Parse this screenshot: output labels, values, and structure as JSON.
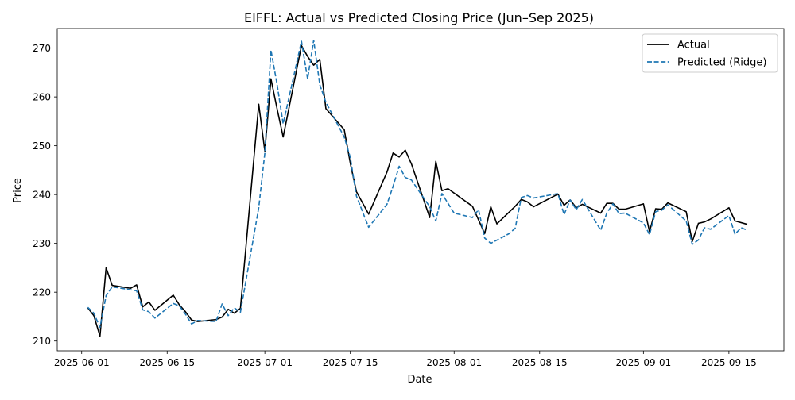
{
  "chart_data": {
    "type": "line",
    "title": "EIFFL: Actual vs Predicted Closing Price (Jun–Sep 2025)",
    "xlabel": "Date",
    "ylabel": "Price",
    "xlim": [
      "2025-05-28",
      "2025-09-24"
    ],
    "ylim": [
      208,
      274
    ],
    "x_ticks": [
      "2025-06-01",
      "2025-06-15",
      "2025-07-01",
      "2025-07-15",
      "2025-08-01",
      "2025-08-15",
      "2025-09-01",
      "2025-09-15"
    ],
    "y_ticks": [
      210,
      220,
      230,
      240,
      250,
      260,
      270
    ],
    "grid": false,
    "legend_position": "top-right",
    "series": [
      {
        "name": "Actual",
        "color": "#000000",
        "style": "solid",
        "points": [
          [
            "2025-06-02",
            216.8
          ],
          [
            "2025-06-03",
            215.2
          ],
          [
            "2025-06-04",
            211.0
          ],
          [
            "2025-06-05",
            225.0
          ],
          [
            "2025-06-06",
            221.4
          ],
          [
            "2025-06-09",
            220.8
          ],
          [
            "2025-06-10",
            221.5
          ],
          [
            "2025-06-11",
            217.0
          ],
          [
            "2025-06-12",
            218.0
          ],
          [
            "2025-06-13",
            216.3
          ],
          [
            "2025-06-16",
            219.4
          ],
          [
            "2025-06-17",
            217.4
          ],
          [
            "2025-06-18",
            216.0
          ],
          [
            "2025-06-19",
            214.3
          ],
          [
            "2025-06-20",
            214.0
          ],
          [
            "2025-06-23",
            214.4
          ],
          [
            "2025-06-24",
            214.9
          ],
          [
            "2025-06-25",
            216.5
          ],
          [
            "2025-06-26",
            215.7
          ],
          [
            "2025-06-27",
            216.7
          ],
          [
            "2025-06-30",
            258.5
          ],
          [
            "2025-07-01",
            248.9
          ],
          [
            "2025-07-02",
            263.7
          ],
          [
            "2025-07-03",
            257.6
          ],
          [
            "2025-07-04",
            251.8
          ],
          [
            "2025-07-07",
            270.5
          ],
          [
            "2025-07-08",
            268.3
          ],
          [
            "2025-07-09",
            266.5
          ],
          [
            "2025-07-10",
            267.7
          ],
          [
            "2025-07-11",
            257.6
          ],
          [
            "2025-07-14",
            253.3
          ],
          [
            "2025-07-15",
            246.4
          ],
          [
            "2025-07-16",
            240.6
          ],
          [
            "2025-07-18",
            236.0
          ],
          [
            "2025-07-21",
            244.6
          ],
          [
            "2025-07-22",
            248.5
          ],
          [
            "2025-07-23",
            247.7
          ],
          [
            "2025-07-24",
            249.1
          ],
          [
            "2025-07-25",
            246.3
          ],
          [
            "2025-07-28",
            235.3
          ],
          [
            "2025-07-29",
            246.8
          ],
          [
            "2025-07-30",
            240.8
          ],
          [
            "2025-07-31",
            241.2
          ],
          [
            "2025-08-04",
            237.6
          ],
          [
            "2025-08-06",
            232.0
          ],
          [
            "2025-08-07",
            237.5
          ],
          [
            "2025-08-08",
            234.0
          ],
          [
            "2025-08-11",
            237.6
          ],
          [
            "2025-08-12",
            239.0
          ],
          [
            "2025-08-13",
            238.5
          ],
          [
            "2025-08-14",
            237.5
          ],
          [
            "2025-08-18",
            240.1
          ],
          [
            "2025-08-19",
            237.8
          ],
          [
            "2025-08-20",
            238.9
          ],
          [
            "2025-08-21",
            237.3
          ],
          [
            "2025-08-22",
            238.0
          ],
          [
            "2025-08-25",
            236.2
          ],
          [
            "2025-08-26",
            238.2
          ],
          [
            "2025-08-27",
            238.2
          ],
          [
            "2025-08-28",
            237.0
          ],
          [
            "2025-08-29",
            237.0
          ],
          [
            "2025-09-01",
            238.1
          ],
          [
            "2025-09-02",
            232.4
          ],
          [
            "2025-09-03",
            237.1
          ],
          [
            "2025-09-04",
            237.0
          ],
          [
            "2025-09-05",
            238.3
          ],
          [
            "2025-09-08",
            236.5
          ],
          [
            "2025-09-09",
            230.4
          ],
          [
            "2025-09-10",
            234.1
          ],
          [
            "2025-09-11",
            234.4
          ],
          [
            "2025-09-12",
            235.0
          ],
          [
            "2025-09-15",
            237.3
          ],
          [
            "2025-09-16",
            234.6
          ],
          [
            "2025-09-18",
            233.9
          ]
        ]
      },
      {
        "name": "Predicted (Ridge)",
        "color": "#1f77b4",
        "style": "dashed",
        "points": [
          [
            "2025-06-02",
            216.9
          ],
          [
            "2025-06-03",
            215.7
          ],
          [
            "2025-06-04",
            212.8
          ],
          [
            "2025-06-05",
            219.3
          ],
          [
            "2025-06-06",
            221.1
          ],
          [
            "2025-06-09",
            220.5
          ],
          [
            "2025-06-10",
            220.3
          ],
          [
            "2025-06-11",
            216.4
          ],
          [
            "2025-06-12",
            216.0
          ],
          [
            "2025-06-13",
            214.7
          ],
          [
            "2025-06-16",
            217.7
          ],
          [
            "2025-06-17",
            217.2
          ],
          [
            "2025-06-18",
            215.5
          ],
          [
            "2025-06-19",
            213.5
          ],
          [
            "2025-06-20",
            214.2
          ],
          [
            "2025-06-23",
            214.0
          ],
          [
            "2025-06-24",
            217.6
          ],
          [
            "2025-06-25",
            215.2
          ],
          [
            "2025-06-26",
            216.8
          ],
          [
            "2025-06-27",
            215.9
          ],
          [
            "2025-06-30",
            237.3
          ],
          [
            "2025-07-01",
            248.5
          ],
          [
            "2025-07-02",
            269.6
          ],
          [
            "2025-07-03",
            262.6
          ],
          [
            "2025-07-04",
            254.5
          ],
          [
            "2025-07-07",
            271.4
          ],
          [
            "2025-07-08",
            263.7
          ],
          [
            "2025-07-09",
            271.6
          ],
          [
            "2025-07-10",
            262.5
          ],
          [
            "2025-07-11",
            258.9
          ],
          [
            "2025-07-14",
            251.8
          ],
          [
            "2025-07-15",
            247.6
          ],
          [
            "2025-07-16",
            239.7
          ],
          [
            "2025-07-18",
            233.3
          ],
          [
            "2025-07-21",
            238.0
          ],
          [
            "2025-07-22",
            241.7
          ],
          [
            "2025-07-23",
            245.8
          ],
          [
            "2025-07-24",
            243.5
          ],
          [
            "2025-07-25",
            243.0
          ],
          [
            "2025-07-28",
            237.5
          ],
          [
            "2025-07-29",
            234.6
          ],
          [
            "2025-07-30",
            240.2
          ],
          [
            "2025-08-01",
            236.2
          ],
          [
            "2025-08-04",
            235.3
          ],
          [
            "2025-08-05",
            236.9
          ],
          [
            "2025-08-06",
            231.1
          ],
          [
            "2025-08-07",
            230.0
          ],
          [
            "2025-08-10",
            232.0
          ],
          [
            "2025-08-11",
            233.1
          ],
          [
            "2025-08-12",
            239.4
          ],
          [
            "2025-08-13",
            239.8
          ],
          [
            "2025-08-14",
            239.3
          ],
          [
            "2025-08-18",
            240.2
          ],
          [
            "2025-08-19",
            235.9
          ],
          [
            "2025-08-20",
            238.9
          ],
          [
            "2025-08-21",
            236.9
          ],
          [
            "2025-08-22",
            239.0
          ],
          [
            "2025-08-25",
            232.7
          ],
          [
            "2025-08-26",
            236.2
          ],
          [
            "2025-08-27",
            238.1
          ],
          [
            "2025-08-28",
            236.1
          ],
          [
            "2025-08-29",
            236.2
          ],
          [
            "2025-09-01",
            234.2
          ],
          [
            "2025-09-02",
            231.8
          ],
          [
            "2025-09-03",
            236.5
          ],
          [
            "2025-09-04",
            236.8
          ],
          [
            "2025-09-05",
            237.9
          ],
          [
            "2025-09-08",
            234.6
          ],
          [
            "2025-09-09",
            229.8
          ],
          [
            "2025-09-10",
            230.7
          ],
          [
            "2025-09-11",
            233.2
          ],
          [
            "2025-09-12",
            232.9
          ],
          [
            "2025-09-15",
            235.7
          ],
          [
            "2025-09-16",
            231.9
          ],
          [
            "2025-09-17",
            233.2
          ],
          [
            "2025-09-18",
            232.7
          ]
        ]
      }
    ]
  }
}
